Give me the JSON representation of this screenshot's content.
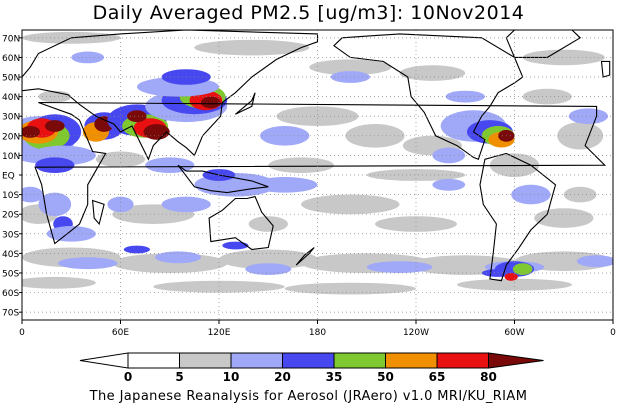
{
  "title": "Daily Averaged PM2.5 [ug/m3]: 10Nov2014",
  "footer": "The Japanese Reanalysis for Aerosol (JRAero) v1.0 MRI/KU_RIAM",
  "chart_data": {
    "type": "heatmap",
    "title": "Daily Averaged PM2.5 [ug/m3]: 10Nov2014",
    "variable": "PM2.5",
    "units": "ug/m3",
    "date": "10Nov2014",
    "x_ticks": [
      "0",
      "60E",
      "120E",
      "180",
      "120W",
      "60W",
      "0"
    ],
    "y_ticks": [
      "70S",
      "60S",
      "50S",
      "40S",
      "30S",
      "20S",
      "10S",
      "EQ",
      "10N",
      "20N",
      "30N",
      "40N",
      "50N",
      "60N",
      "70N"
    ],
    "grid": true,
    "colorbar": {
      "ticks": [
        "0",
        "5",
        "10",
        "20",
        "35",
        "50",
        "65",
        "80"
      ],
      "bins": [
        {
          "range": "<0",
          "color": "#ffffff"
        },
        {
          "range": "0-5",
          "color": "#ffffff"
        },
        {
          "range": "5-10",
          "color": "#c8c8c8"
        },
        {
          "range": "10-20",
          "color": "#a0a8f8"
        },
        {
          "range": "20-35",
          "color": "#4848f0"
        },
        {
          "range": "35-50",
          "color": "#80c830"
        },
        {
          "range": "50-65",
          "color": "#f09000"
        },
        {
          "range": "65-80",
          "color": "#e81010"
        },
        {
          "range": ">80",
          "color": "#7a0a0a"
        }
      ]
    },
    "hotspots": [
      {
        "region": "Sahara / West Africa",
        "max_bin": ">80"
      },
      {
        "region": "Arabia / Indo-Gangetic Plain",
        "max_bin": ">80"
      },
      {
        "region": "Northern China",
        "max_bin": ">80"
      },
      {
        "region": "Mexico / Caribbean",
        "max_bin": ">80"
      },
      {
        "region": "Southern Patagonia",
        "max_bin": "65-80"
      }
    ]
  }
}
